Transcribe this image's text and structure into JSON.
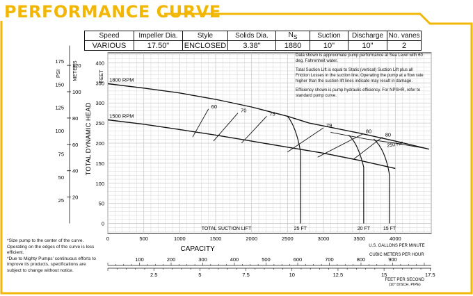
{
  "page_title": "PERFORMANCE CURVE",
  "colors": {
    "accent": "#f2b705",
    "ink": "#111111",
    "grid": "#c9c9c9"
  },
  "spec_table": {
    "headers": [
      "Speed",
      "Impeller Dia.",
      "Style",
      "Solids Dia.",
      "N",
      "Suction",
      "Discharge",
      "No. vanes"
    ],
    "ns_subscript": "S",
    "values": [
      "VARIOUS",
      "17.50\"",
      "ENCLOSED",
      "3.38\"",
      "1880",
      "10\"",
      "10\"",
      "2"
    ]
  },
  "notes": [
    "Data shown is approximate pump performance at Sea Level with 60 deg. Fahrenheit water.",
    "Total Suction Lift is equal to Static (vertical) Suction Lift plus all Friction Losses in the suction line. Operating the pump at a flow rate higher than the suction lift lines indicate may result in damage.",
    "Efficiency shown is pump hydraulic efficiency. For NPSHR, refer to standard pump curve."
  ],
  "footnotes": [
    "*Size pump to the center of the curve. Operating on the edges of the curve is loss efficient.",
    "*Due to Mighty Pumps' continuous efforts to improve its products, specifications are subject to change without notice."
  ],
  "chart_data": {
    "type": "line",
    "ylabel": "TOTAL DYNAMIC HEAD",
    "xlabel": "CAPACITY",
    "x_unit": "U.S. GALLONS PER MINUTE",
    "x_ticks": [
      0,
      500,
      1000,
      1500,
      2000,
      2500,
      3000,
      3500,
      4000
    ],
    "xlim": [
      0,
      4500
    ],
    "ylim": [
      -25,
      425
    ],
    "feet": {
      "unit": "FEET",
      "ticks": [
        0,
        50,
        100,
        150,
        200,
        250,
        300,
        350,
        400
      ]
    },
    "meters": {
      "unit": "METERS",
      "ticks": [
        20,
        40,
        60,
        80,
        100,
        120
      ]
    },
    "psi": {
      "unit": "PSI",
      "ticks": [
        25,
        50,
        75,
        100,
        125,
        150,
        175
      ]
    },
    "cubic_meters_per_hour": {
      "unit": "CUBIC METERS PER HOUR",
      "ticks": [
        100,
        200,
        300,
        400,
        500,
        600,
        700,
        800,
        900
      ]
    },
    "feet_per_second": {
      "unit": "FEET PER SECOND",
      "subunit": "(10\" DISCH. PIPE)",
      "ticks": [
        "2.5",
        "5",
        "7.5",
        "10",
        "12.5",
        "15",
        "17.5"
      ]
    },
    "series": [
      {
        "name": "1800 RPM",
        "x": [
          0,
          500,
          1000,
          1500,
          2000,
          2500,
          2800,
          3000,
          3500,
          4000,
          4470
        ],
        "y": [
          348,
          337,
          325,
          309,
          290,
          267,
          250,
          243,
          225,
          205,
          185
        ]
      },
      {
        "name": "1500 RPM",
        "x": [
          0,
          500,
          1000,
          1500,
          2000,
          2500,
          3000,
          3500,
          3800,
          4000
        ],
        "y": [
          258,
          247,
          234,
          220,
          205,
          190,
          175,
          157,
          145,
          137
        ]
      },
      {
        "name": "250 HP",
        "x": [
          3100,
          3600,
          4000,
          4450
        ],
        "y": [
          227,
          210,
          200,
          186
        ]
      }
    ],
    "efficiency_lines": [
      {
        "label": "60",
        "x": [
          1180,
          1400
        ],
        "y": [
          215,
          285
        ]
      },
      {
        "label": "70",
        "x": [
          1470,
          1810
        ],
        "y": [
          205,
          275
        ]
      },
      {
        "label": "75",
        "x": [
          1860,
          2210
        ],
        "y": [
          200,
          267
        ]
      },
      {
        "label": "79",
        "x": [
          2500,
          3000
        ],
        "y": [
          178,
          238
        ]
      },
      {
        "label": "80",
        "x": [
          2920,
          3550
        ],
        "y": [
          165,
          223
        ]
      },
      {
        "label": "80",
        "x": [
          3420,
          3820
        ],
        "y": [
          160,
          215
        ]
      }
    ],
    "suction_lift": {
      "label": "TOTAL SUCTION LIFT",
      "lines": [
        {
          "label": "25 FT",
          "x": [
            2500,
            2620,
            2680,
            2680
          ],
          "y": [
            267,
            240,
            180,
            0
          ]
        },
        {
          "label": "20 FT",
          "x": [
            3350,
            3480,
            3560,
            3560
          ],
          "y": [
            220,
            200,
            140,
            0
          ]
        },
        {
          "label": "15 FT",
          "x": [
            3700,
            3860,
            3920,
            3920
          ],
          "y": [
            210,
            185,
            120,
            0
          ]
        }
      ]
    }
  }
}
